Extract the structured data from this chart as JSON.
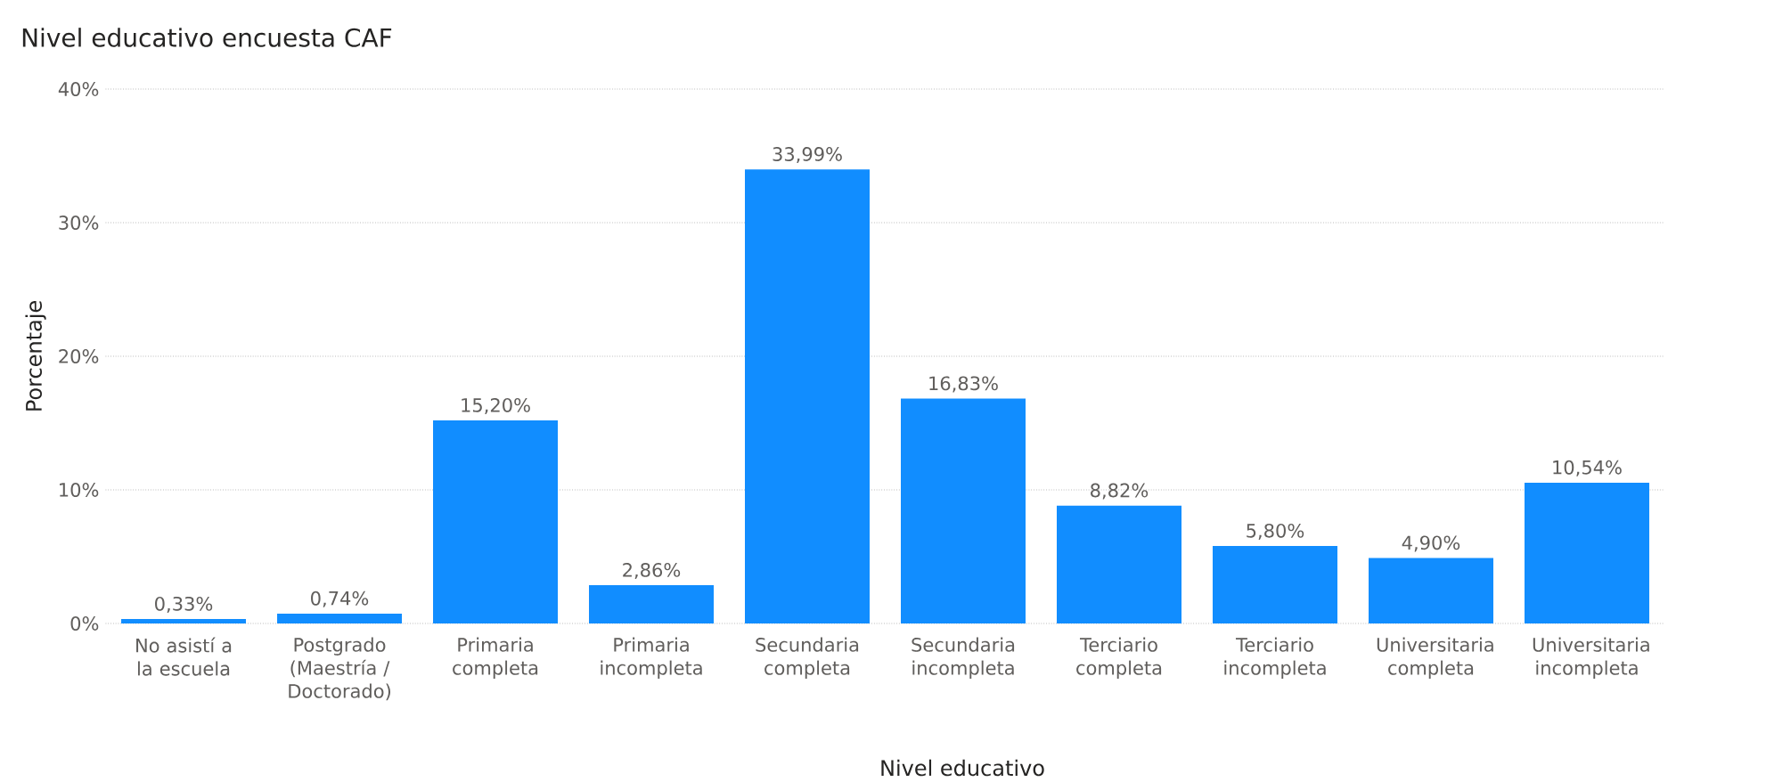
{
  "chart_data": {
    "type": "bar",
    "title": "Nivel educativo encuesta CAF",
    "xlabel": "Nivel educativo",
    "ylabel": "Porcentaje",
    "categories": [
      "No asistí a la escuela",
      "Postgrado (Maestría / Doctorado)",
      "Primaria completa",
      "Primaria incompleta",
      "Secundaria completa",
      "Secundaria incompleta",
      "Terciario completa",
      "Terciario incompleta",
      "Universitaria completa",
      "Universitaria incompleta"
    ],
    "values": [
      0.33,
      0.74,
      15.2,
      2.86,
      33.99,
      16.83,
      8.82,
      5.8,
      4.9,
      10.54
    ],
    "value_labels": [
      "0,33%",
      "0,74%",
      "15,20%",
      "2,86%",
      "33,99%",
      "16,83%",
      "8,82%",
      "5,80%",
      "4,90%",
      "10,54%"
    ],
    "color": "#118dff",
    "ylim": [
      0,
      40
    ],
    "yticks": [
      {
        "value": 0,
        "label": "0%"
      },
      {
        "value": 10,
        "label": "10%"
      },
      {
        "value": 20,
        "label": "20%"
      },
      {
        "value": 30,
        "label": "30%"
      },
      {
        "value": 40,
        "label": "40%"
      }
    ],
    "grid": "y"
  }
}
